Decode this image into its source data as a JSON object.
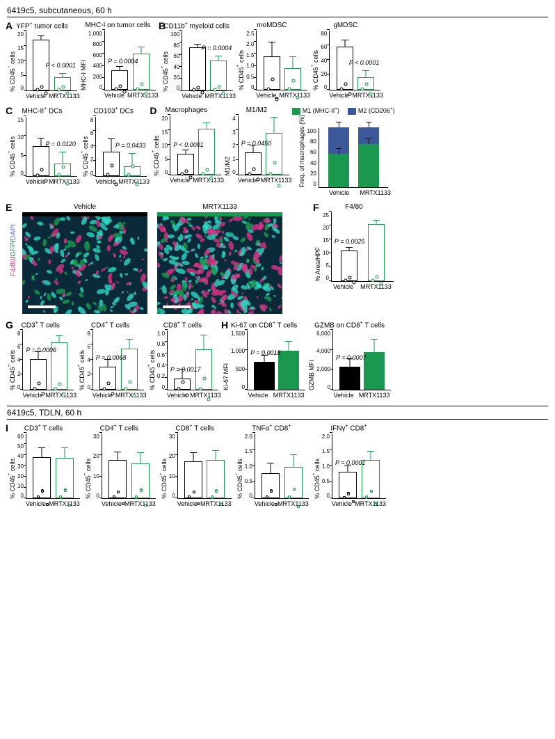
{
  "header": "6419c5, subcutaneous, 60 h",
  "section2_header": "6419c5, TDLN, 60 h",
  "groups": [
    "Vehicle",
    "MRTX1133"
  ],
  "colors": {
    "vehicle_stroke": "#000000",
    "mrtx_stroke": "#1a9850",
    "mrtx_fill": "#1a9850",
    "m2_blue": "#3b5998",
    "m1_green": "#1a9850"
  },
  "A": {
    "label": "A",
    "charts": [
      {
        "title": "YFP+ tumor cells",
        "ylabel": "% CD45− cells",
        "ymax": 20,
        "yticks": [
          0,
          5,
          10,
          15,
          20
        ],
        "vals": [
          17,
          4.5
        ],
        "err": [
          1.5,
          1.5
        ],
        "pval": "P < 0.0001",
        "ppos": "right"
      },
      {
        "title": "MHC-I on tumor cells",
        "ylabel": "MHC-I MFI",
        "ymax": 1000,
        "yticks": [
          0,
          200,
          400,
          600,
          800,
          "1,000"
        ],
        "vals": [
          320,
          600
        ],
        "err": [
          70,
          120
        ],
        "pval": "P = 0.0004",
        "ppos": "left"
      }
    ]
  },
  "B": {
    "label": "B",
    "charts": [
      {
        "title": "CD11b+ myeloid cells",
        "ylabel": "% CD45+ cells",
        "ymax": 100,
        "yticks": [
          0,
          20,
          40,
          60,
          80,
          100
        ],
        "vals": [
          72,
          50
        ],
        "err": [
          6,
          8
        ],
        "pval": "P = 0.0004",
        "ppos": "right"
      },
      {
        "title": "moMDSC",
        "ylabel": "% CD45+ cells",
        "ymax": 2.5,
        "yticks": [
          "0",
          "0.5",
          "1.0",
          "1.5",
          "2.0",
          "2.5"
        ],
        "vals": [
          1.4,
          0.9
        ],
        "err": [
          0.6,
          0.5
        ],
        "pval": "",
        "ppos": ""
      },
      {
        "title": "gMDSC",
        "ylabel": "% CD45+ cells",
        "ymax": 80,
        "yticks": [
          0,
          20,
          40,
          60,
          80
        ],
        "vals": [
          58,
          17
        ],
        "err": [
          9,
          9
        ],
        "pval": "P < 0.0001",
        "ppos": "right"
      }
    ]
  },
  "C": {
    "label": "C",
    "charts": [
      {
        "title": "MHC-II+ DCs",
        "ylabel": "% CD45+ cells",
        "ymax": 15,
        "yticks": [
          0,
          5,
          10,
          15
        ],
        "vals": [
          7.5,
          3
        ],
        "err": [
          2,
          3
        ],
        "pval": "P = 0.0120",
        "ppos": "right"
      },
      {
        "title": "CD103+ DCs",
        "ylabel": "% CD45+ cells",
        "ymax": 8,
        "yticks": [
          0,
          2,
          4,
          6,
          8
        ],
        "vals": [
          3.2,
          1.3
        ],
        "err": [
          1.8,
          1.7
        ],
        "pval": "P = 0.0433",
        "ppos": "right"
      }
    ]
  },
  "D": {
    "label": "D",
    "charts": [
      {
        "title": "Macrophages",
        "ylabel": "% CD45+ cells",
        "ymax": 20,
        "yticks": [
          0,
          5,
          10,
          15,
          20
        ],
        "vals": [
          7,
          15.5
        ],
        "err": [
          1.5,
          2
        ],
        "pval": "P < 0.0001",
        "ppos": "left"
      },
      {
        "title": "M1/M2",
        "ylabel": "M1/M2",
        "ymax": 4,
        "yticks": [
          0,
          1,
          2,
          3,
          4
        ],
        "vals": [
          1.5,
          2.8
        ],
        "err": [
          0.5,
          1.1
        ],
        "pval": "P = 0.0450",
        "ppos": "left"
      }
    ],
    "stacked": {
      "ylabel": "Freq. of macrophages (%)",
      "ymax": 110,
      "yticks": [
        0,
        20,
        40,
        60,
        80,
        100
      ],
      "vehicle": {
        "m1": 55,
        "m2": 45,
        "err": 8
      },
      "mrtx": {
        "m1": 72,
        "m2": 28,
        "err": 8
      },
      "legend_m1": "M1 (MHC-II+)",
      "legend_m2": "M2 (CD206+)"
    }
  },
  "E": {
    "label": "E",
    "titles": [
      "Vehicle",
      "MRTX1133"
    ],
    "channels": "F4/80/GFP/DAPI"
  },
  "F": {
    "label": "F",
    "chart": {
      "title": "F4/80",
      "ylabel": "% Area/HPF",
      "ymax": 25,
      "yticks": [
        0,
        5,
        10,
        15,
        20,
        25
      ],
      "vals": [
        11,
        20.5
      ],
      "err": [
        1.2,
        1.5
      ],
      "pval": "P = 0.0025",
      "ppos": "left"
    }
  },
  "G": {
    "label": "G",
    "charts": [
      {
        "title": "CD3+ T cells",
        "ylabel": "% CD45+ cells",
        "ymax": 8,
        "yticks": [
          0,
          2,
          4,
          6,
          8
        ],
        "vals": [
          4.1,
          6.3
        ],
        "err": [
          1,
          0.9
        ],
        "pval": "P = 0.0006",
        "ppos": "left"
      },
      {
        "title": "CD4+ T cells",
        "ylabel": "% CD45+ cells",
        "ymax": 8,
        "yticks": [
          0,
          2,
          4,
          6,
          8
        ],
        "vals": [
          3.1,
          5.5
        ],
        "err": [
          1,
          1.3
        ],
        "pval": "P = 0.0068",
        "ppos": "left"
      },
      {
        "title": "CD8+ T cells",
        "ylabel": "% CD45+ cells",
        "ymax": 1.0,
        "yticks": [
          "0",
          "0.2",
          "0.4",
          "0.6",
          "0.8",
          "1.0"
        ],
        "vals": [
          0.19,
          0.67
        ],
        "err": [
          0.16,
          0.25
        ],
        "pval": "P = 0.0017",
        "ppos": "left"
      }
    ]
  },
  "H": {
    "label": "H",
    "charts": [
      {
        "title": "Ki-67 on CD8+ T cells",
        "ylabel": "Ki-67 MFI",
        "ymax": 1500,
        "yticks": [
          "0",
          "500",
          "1,000",
          "1,500"
        ],
        "vals": [
          690,
          970
        ],
        "err": [
          180,
          240
        ],
        "pval": "P = 0.0018",
        "ppos": "left",
        "filled": true
      },
      {
        "title": "GZMB on CD8+ T cells",
        "ylabel": "GZMB MFI",
        "ymax": 6000,
        "yticks": [
          "0",
          "2,000",
          "4,000",
          "6,000"
        ],
        "vals": [
          2300,
          3750
        ],
        "err": [
          850,
          1300
        ],
        "pval": "P = 0.0007",
        "ppos": "left",
        "filled": true
      }
    ]
  },
  "I": {
    "label": "I",
    "charts": [
      {
        "title": "CD3+ T cells",
        "ylabel": "% CD45+ cells",
        "ymax": 60,
        "yticks": [
          0,
          10,
          20,
          30,
          40,
          50,
          60
        ],
        "vals": [
          38,
          37
        ],
        "err": [
          9,
          10
        ],
        "pval": "",
        "n": 16
      },
      {
        "title": "CD4+ T cells",
        "ylabel": "% CD45+ cells",
        "ymax": 30,
        "yticks": [
          0,
          10,
          20,
          30
        ],
        "vals": [
          17.5,
          16
        ],
        "err": [
          4,
          5
        ],
        "pval": "",
        "n": 16
      },
      {
        "title": "CD8+ T cells",
        "ylabel": "% CD45+ cells",
        "ymax": 30,
        "yticks": [
          0,
          10,
          20,
          30
        ],
        "vals": [
          17,
          17.5
        ],
        "err": [
          4,
          4.5
        ],
        "pval": "",
        "n": 16
      },
      {
        "title": "TNFα+ CD8+",
        "ylabel": "% CD45+ cells",
        "ymax": 2.0,
        "yticks": [
          "0",
          "0.5",
          "1.0",
          "1.5",
          "2.0"
        ],
        "vals": [
          0.78,
          0.96
        ],
        "err": [
          0.3,
          0.38
        ],
        "pval": "",
        "n": 16
      },
      {
        "title": "IFNγ+ CD8+",
        "ylabel": "% CD45+ cells",
        "ymax": 2.0,
        "yticks": [
          "0",
          "0.5",
          "1.0",
          "1.5",
          "2.0"
        ],
        "vals": [
          0.82,
          1.18
        ],
        "err": [
          0.18,
          0.28
        ],
        "pval": "P = 0.0001",
        "ppos": "left",
        "n": 16
      }
    ]
  }
}
